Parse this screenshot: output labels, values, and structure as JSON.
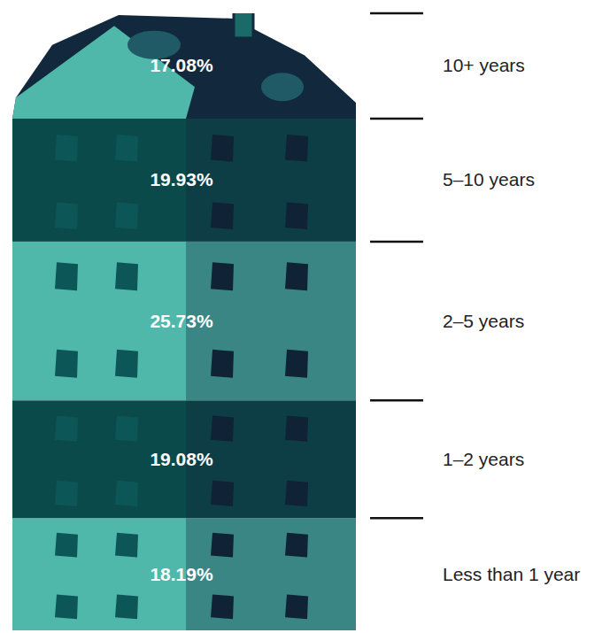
{
  "chart_data": {
    "type": "bar",
    "stacked": true,
    "data_labels": true,
    "categories": [
      "Less than 1 year",
      "1–2 years",
      "2–5 years",
      "5–10 years",
      "10+ years"
    ],
    "values": [
      18.19,
      19.08,
      25.73,
      19.93,
      17.08
    ],
    "value_labels": [
      "18.19%",
      "19.08%",
      "25.73%",
      "19.93%",
      "17.08%"
    ],
    "colors": [
      "#4fb8ab",
      "#0b4a4b",
      "#4fb8ab",
      "#0b4a4b",
      "#12293d"
    ],
    "ylim": [
      0,
      100
    ]
  }
}
